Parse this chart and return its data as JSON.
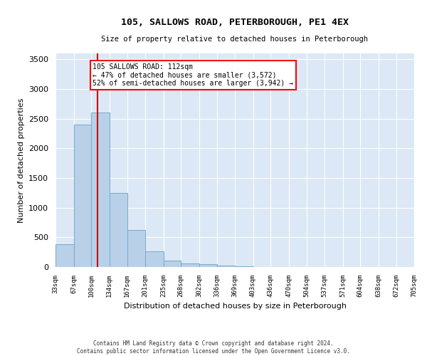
{
  "title": "105, SALLOWS ROAD, PETERBOROUGH, PE1 4EX",
  "subtitle": "Size of property relative to detached houses in Peterborough",
  "xlabel": "Distribution of detached houses by size in Peterborough",
  "ylabel": "Number of detached properties",
  "bins": [
    33,
    67,
    100,
    134,
    167,
    201,
    235,
    268,
    302,
    336,
    369,
    403,
    436,
    470,
    504,
    537,
    571,
    604,
    638,
    672,
    705
  ],
  "counts": [
    390,
    2400,
    2600,
    1250,
    630,
    270,
    110,
    55,
    45,
    30,
    15,
    0,
    0,
    0,
    0,
    0,
    0,
    0,
    0,
    0
  ],
  "bar_color": "#b8d0e8",
  "bar_edge_color": "#7aaac8",
  "background_color": "#dce8f5",
  "grid_color": "#ffffff",
  "property_sqm": 112,
  "annotation_text": "105 SALLOWS ROAD: 112sqm\n← 47% of detached houses are smaller (3,572)\n52% of semi-detached houses are larger (3,942) →",
  "vline_color": "#cc0000",
  "ylim": [
    0,
    3600
  ],
  "yticks": [
    0,
    500,
    1000,
    1500,
    2000,
    2500,
    3000,
    3500
  ],
  "footer_line1": "Contains HM Land Registry data © Crown copyright and database right 2024.",
  "footer_line2": "Contains public sector information licensed under the Open Government Licence v3.0."
}
